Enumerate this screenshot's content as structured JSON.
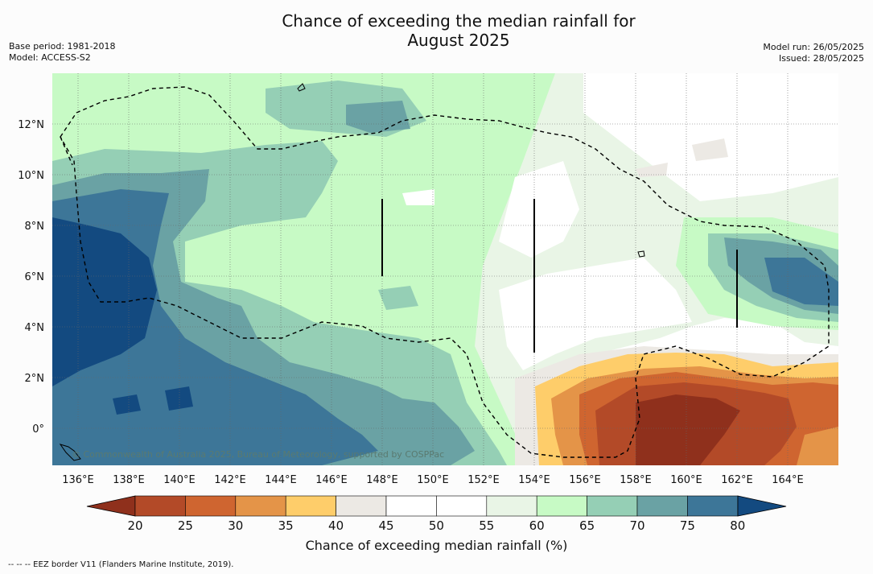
{
  "title_line1": "Chance of exceeding the median rainfall for",
  "title_line2": "August 2025",
  "base_period": "Base period: 1981-2018",
  "model": "Model: ACCESS-S2",
  "model_run": "Model run: 26/05/2025",
  "issued": "Issued: 28/05/2025",
  "copyright": "© Commonwealth of Australia 2025, Bureau of Meteorology, supported by COSPPac",
  "colorbar_title": "Chance of exceeding median rainfall (%)",
  "footnote": "--  --  -- EEZ border V11 (Flanders Marine Institute, 2019).",
  "lon_labels": [
    "136°E",
    "138°E",
    "140°E",
    "142°E",
    "144°E",
    "146°E",
    "148°E",
    "150°E",
    "152°E",
    "154°E",
    "156°E",
    "158°E",
    "160°E",
    "162°E",
    "164°E"
  ],
  "lat_labels": [
    "12°N",
    "10°N",
    "8°N",
    "6°N",
    "4°N",
    "2°N",
    "0°"
  ],
  "colorbar": {
    "ticks": [
      "20",
      "25",
      "30",
      "35",
      "40",
      "45",
      "50",
      "55",
      "60",
      "65",
      "70",
      "75",
      "80"
    ],
    "colors": [
      "#8f301c",
      "#b34a28",
      "#cf6530",
      "#e49448",
      "#fecd6a",
      "#ece9e4",
      "#ffffff",
      "#ffffff",
      "#e9f5e6",
      "#c7fac5",
      "#95cfb5",
      "#6aa2a4",
      "#3d7698",
      "#134a80"
    ]
  }
}
